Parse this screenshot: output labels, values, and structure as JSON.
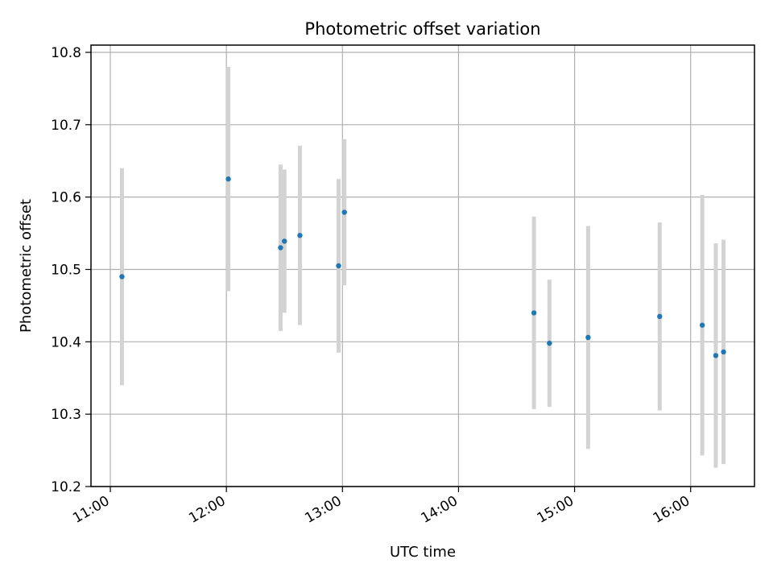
{
  "chart_data": {
    "type": "scatter",
    "title": "Photometric offset variation",
    "xlabel": "UTC time",
    "ylabel": "Photometric offset",
    "x_ticks": [
      "11:00",
      "12:00",
      "13:00",
      "14:00",
      "15:00",
      "16:00"
    ],
    "y_ticks": [
      "10.2",
      "10.3",
      "10.4",
      "10.5",
      "10.6",
      "10.7",
      "10.8"
    ],
    "xlim": [
      "10:50",
      "16:33"
    ],
    "ylim": [
      10.2,
      10.81
    ],
    "grid": true,
    "error_bar_color": "#d3d3d3",
    "point_color": "#1f77b4",
    "points": [
      {
        "x": "11:06",
        "y": 10.49,
        "err": 0.15
      },
      {
        "x": "12:01",
        "y": 10.625,
        "err": 0.155
      },
      {
        "x": "12:28",
        "y": 10.53,
        "err": 0.115
      },
      {
        "x": "12:30",
        "y": 10.539,
        "err": 0.099
      },
      {
        "x": "12:38",
        "y": 10.547,
        "err": 0.124
      },
      {
        "x": "12:58",
        "y": 10.505,
        "err": 0.12
      },
      {
        "x": "13:01",
        "y": 10.579,
        "err": 0.101
      },
      {
        "x": "14:39",
        "y": 10.44,
        "err": 0.133
      },
      {
        "x": "14:47",
        "y": 10.398,
        "err": 0.088
      },
      {
        "x": "15:07",
        "y": 10.406,
        "err": 0.154
      },
      {
        "x": "15:44",
        "y": 10.435,
        "err": 0.13
      },
      {
        "x": "16:06",
        "y": 10.423,
        "err": 0.18
      },
      {
        "x": "16:13",
        "y": 10.381,
        "err": 0.155
      },
      {
        "x": "16:17",
        "y": 10.386,
        "err": 0.155
      }
    ]
  }
}
